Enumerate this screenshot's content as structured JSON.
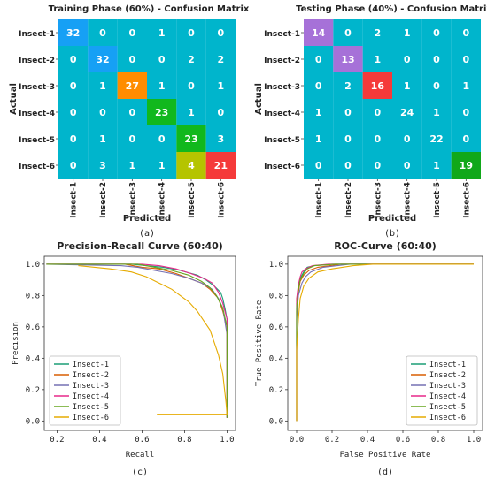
{
  "chart_data": [
    {
      "type": "heatmap",
      "title": "Training Phase (60%) - Confusion Matrix",
      "caption": "(a)",
      "xlabel": "Predicted",
      "ylabel": "Actual",
      "rows": [
        "Insect-1",
        "Insect-2",
        "Insect-3",
        "Insect-4",
        "Insect-5",
        "Insect-6"
      ],
      "cols": [
        "Insect-1",
        "Insect-2",
        "Insect-3",
        "Insect-4",
        "Insect-5",
        "Insect-6"
      ],
      "matrix": [
        [
          32,
          0,
          0,
          1,
          0,
          0
        ],
        [
          0,
          32,
          0,
          0,
          2,
          2
        ],
        [
          0,
          1,
          27,
          1,
          0,
          1
        ],
        [
          0,
          0,
          0,
          23,
          1,
          0
        ],
        [
          0,
          1,
          0,
          0,
          23,
          3
        ],
        [
          0,
          3,
          1,
          1,
          4,
          21
        ]
      ],
      "cell_colors": [
        [
          "#16a0f5",
          "#00b5cc",
          "#00b5cc",
          "#00b5cc",
          "#00b5cc",
          "#00b5cc"
        ],
        [
          "#00b5cc",
          "#16a0f5",
          "#00b5cc",
          "#00b5cc",
          "#00b5cc",
          "#00b5cc"
        ],
        [
          "#00b5cc",
          "#00b5cc",
          "#ff8c00",
          "#00b5cc",
          "#00b5cc",
          "#00b5cc"
        ],
        [
          "#00b5cc",
          "#00b5cc",
          "#00b5cc",
          "#11b81d",
          "#00b5cc",
          "#00b5cc"
        ],
        [
          "#00b5cc",
          "#00b5cc",
          "#00b5cc",
          "#00b5cc",
          "#11b81d",
          "#00b5cc"
        ],
        [
          "#00b5cc",
          "#00b5cc",
          "#00b5cc",
          "#00b5cc",
          "#b5c400",
          "#f53a3a"
        ]
      ]
    },
    {
      "type": "heatmap",
      "title": "Testing Phase (40%) - Confusion Matrix",
      "caption": "(b)",
      "xlabel": "Predicted",
      "ylabel": "Actual",
      "rows": [
        "Insect-1",
        "Insect-2",
        "Insect-3",
        "Insect-4",
        "Insect-5",
        "Insect-6"
      ],
      "cols": [
        "Insect-1",
        "Insect-2",
        "Insect-3",
        "Insect-4",
        "Insect-5",
        "Insect-6"
      ],
      "matrix": [
        [
          14,
          0,
          2,
          1,
          0,
          0
        ],
        [
          0,
          13,
          1,
          0,
          0,
          0
        ],
        [
          0,
          2,
          16,
          1,
          0,
          1
        ],
        [
          1,
          0,
          0,
          24,
          1,
          0
        ],
        [
          1,
          0,
          0,
          0,
          22,
          0
        ],
        [
          0,
          0,
          0,
          0,
          1,
          19
        ]
      ],
      "cell_colors": [
        [
          "#a671d8",
          "#00b5cc",
          "#00b5cc",
          "#00b5cc",
          "#00b5cc",
          "#00b5cc"
        ],
        [
          "#00b5cc",
          "#a671d8",
          "#00b5cc",
          "#00b5cc",
          "#00b5cc",
          "#00b5cc"
        ],
        [
          "#00b5cc",
          "#00b5cc",
          "#f53a3a",
          "#00b5cc",
          "#00b5cc",
          "#00b5cc"
        ],
        [
          "#00b5cc",
          "#00b5cc",
          "#00b5cc",
          "#00b5cc",
          "#00b5cc",
          "#00b5cc"
        ],
        [
          "#00b5cc",
          "#00b5cc",
          "#00b5cc",
          "#00b5cc",
          "#00b5cc",
          "#00b5cc"
        ],
        [
          "#00b5cc",
          "#00b5cc",
          "#00b5cc",
          "#00b5cc",
          "#00b5cc",
          "#11a81a"
        ]
      ]
    },
    {
      "type": "line",
      "title": "Precision-Recall Curve (60:40)",
      "caption": "(c)",
      "xlabel": "Recall",
      "ylabel": "Precision",
      "xlim": [
        0.14,
        1.04
      ],
      "ylim": [
        -0.06,
        1.05
      ],
      "xticks": [
        0.2,
        0.4,
        0.6,
        0.8,
        1.0
      ],
      "yticks": [
        0.0,
        0.2,
        0.4,
        0.6,
        0.8,
        1.0
      ],
      "tick_labels_x": [
        "0.2",
        "0.4",
        "0.6",
        "0.8",
        "1.0"
      ],
      "tick_labels_y": [
        "0.0",
        "0.2",
        "0.4",
        "0.6",
        "0.8",
        "1.0"
      ],
      "legend_position": "lower-left",
      "series": [
        {
          "name": "Insect-1",
          "color": "#1b9e77",
          "x": [
            0.15,
            0.55,
            0.62,
            0.7,
            0.78,
            0.86,
            0.9,
            0.94,
            0.97,
            0.98,
            0.99,
            1.0,
            1.0
          ],
          "y": [
            1.0,
            1.0,
            0.99,
            0.98,
            0.96,
            0.93,
            0.9,
            0.86,
            0.82,
            0.78,
            0.72,
            0.65,
            0.02
          ]
        },
        {
          "name": "Insect-2",
          "color": "#d95f02",
          "x": [
            0.15,
            0.52,
            0.6,
            0.68,
            0.76,
            0.82,
            0.88,
            0.92,
            0.96,
            0.98,
            1.0,
            1.0
          ],
          "y": [
            1.0,
            1.0,
            0.98,
            0.97,
            0.94,
            0.91,
            0.88,
            0.84,
            0.78,
            0.7,
            0.6,
            0.02
          ]
        },
        {
          "name": "Insect-3",
          "color": "#7570b3",
          "x": [
            0.15,
            0.5,
            0.58,
            0.66,
            0.74,
            0.82,
            0.88,
            0.93,
            0.96,
            0.98,
            1.0,
            1.0
          ],
          "y": [
            1.0,
            0.99,
            0.98,
            0.96,
            0.94,
            0.91,
            0.88,
            0.84,
            0.78,
            0.72,
            0.55,
            0.02
          ]
        },
        {
          "name": "Insect-4",
          "color": "#e7298a",
          "x": [
            0.15,
            0.6,
            0.68,
            0.76,
            0.83,
            0.89,
            0.93,
            0.96,
            0.98,
            1.0,
            1.0
          ],
          "y": [
            1.0,
            1.0,
            0.99,
            0.97,
            0.94,
            0.91,
            0.88,
            0.82,
            0.75,
            0.65,
            0.02
          ]
        },
        {
          "name": "Insect-5",
          "color": "#66a61e",
          "x": [
            0.15,
            0.58,
            0.66,
            0.74,
            0.82,
            0.88,
            0.92,
            0.95,
            0.98,
            1.0,
            1.0
          ],
          "y": [
            1.0,
            1.0,
            0.98,
            0.96,
            0.93,
            0.89,
            0.85,
            0.8,
            0.72,
            0.6,
            0.02
          ]
        },
        {
          "name": "Insect-6",
          "color": "#e6ab02",
          "x": [
            0.3,
            0.45,
            0.55,
            0.62,
            0.68,
            0.74,
            0.78,
            0.82,
            0.86,
            0.89,
            0.92,
            0.94,
            0.96,
            0.97,
            0.98,
            0.985,
            0.99,
            0.995,
            1.0,
            0.67
          ],
          "y": [
            0.99,
            0.97,
            0.95,
            0.92,
            0.88,
            0.84,
            0.8,
            0.76,
            0.7,
            0.64,
            0.58,
            0.5,
            0.42,
            0.36,
            0.3,
            0.24,
            0.18,
            0.12,
            0.04,
            0.04
          ]
        }
      ]
    },
    {
      "type": "line",
      "title": "ROC-Curve (60:40)",
      "caption": "(d)",
      "xlabel": "False Positive Rate",
      "ylabel": "True Positive Rate",
      "xlim": [
        -0.05,
        1.05
      ],
      "ylim": [
        -0.06,
        1.05
      ],
      "xticks": [
        0.0,
        0.2,
        0.4,
        0.6,
        0.8,
        1.0
      ],
      "yticks": [
        0.0,
        0.2,
        0.4,
        0.6,
        0.8,
        1.0
      ],
      "tick_labels_x": [
        "0.0",
        "0.2",
        "0.4",
        "0.6",
        "0.8",
        "1.0"
      ],
      "tick_labels_y": [
        "0.0",
        "0.2",
        "0.4",
        "0.6",
        "0.8",
        "1.0"
      ],
      "legend_position": "lower-right",
      "series": [
        {
          "name": "Insect-1",
          "color": "#1b9e77",
          "x": [
            0.0,
            0.0,
            0.01,
            0.02,
            0.04,
            0.06,
            0.1,
            0.2,
            0.4,
            1.0
          ],
          "y": [
            0.0,
            0.75,
            0.85,
            0.91,
            0.95,
            0.98,
            0.99,
            1.0,
            1.0,
            1.0
          ]
        },
        {
          "name": "Insect-2",
          "color": "#d95f02",
          "x": [
            0.0,
            0.0,
            0.01,
            0.02,
            0.04,
            0.07,
            0.12,
            0.25,
            1.0
          ],
          "y": [
            0.0,
            0.7,
            0.82,
            0.89,
            0.93,
            0.96,
            0.98,
            1.0,
            1.0
          ]
        },
        {
          "name": "Insect-3",
          "color": "#7570b3",
          "x": [
            0.0,
            0.0,
            0.01,
            0.03,
            0.05,
            0.08,
            0.15,
            0.3,
            1.0
          ],
          "y": [
            0.0,
            0.65,
            0.8,
            0.88,
            0.92,
            0.95,
            0.98,
            1.0,
            1.0
          ]
        },
        {
          "name": "Insect-4",
          "color": "#e7298a",
          "x": [
            0.0,
            0.0,
            0.01,
            0.02,
            0.03,
            0.05,
            0.09,
            0.18,
            1.0
          ],
          "y": [
            0.0,
            0.78,
            0.87,
            0.92,
            0.95,
            0.97,
            0.99,
            1.0,
            1.0
          ]
        },
        {
          "name": "Insect-5",
          "color": "#66a61e",
          "x": [
            0.0,
            0.0,
            0.01,
            0.02,
            0.04,
            0.06,
            0.1,
            0.22,
            1.0
          ],
          "y": [
            0.0,
            0.72,
            0.84,
            0.9,
            0.94,
            0.97,
            0.99,
            1.0,
            1.0
          ]
        },
        {
          "name": "Insect-6",
          "color": "#e6ab02",
          "x": [
            0.0,
            0.0,
            0.01,
            0.02,
            0.04,
            0.07,
            0.12,
            0.2,
            0.32,
            0.43,
            1.0
          ],
          "y": [
            0.0,
            0.45,
            0.65,
            0.78,
            0.86,
            0.91,
            0.95,
            0.97,
            0.99,
            1.0,
            1.0
          ]
        }
      ]
    }
  ]
}
